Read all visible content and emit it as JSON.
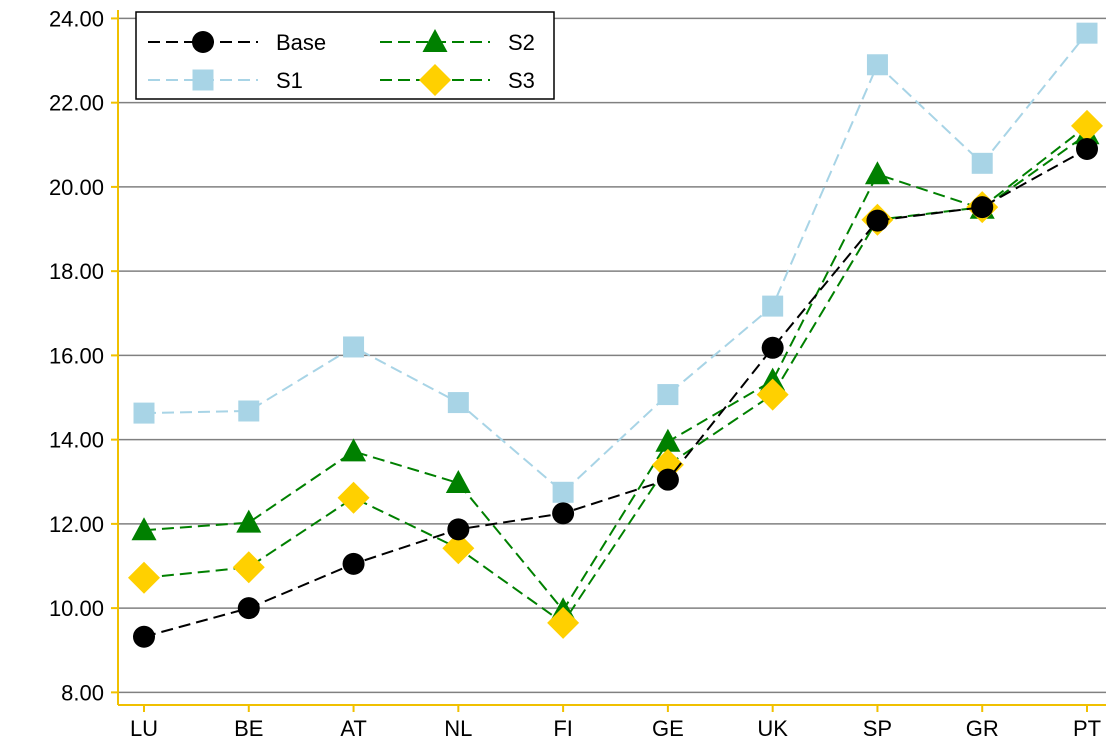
{
  "chart_data": {
    "type": "line",
    "categories": [
      "LU",
      "BE",
      "AT",
      "NL",
      "FI",
      "GE",
      "UK",
      "SP",
      "GR",
      "PT"
    ],
    "y_ticks": [
      "8.00",
      "10.00",
      "12.00",
      "14.00",
      "16.00",
      "18.00",
      "20.00",
      "22.00",
      "24.00"
    ],
    "ylim": [
      7.7,
      24.2
    ],
    "grid": true,
    "legend_position": "top-left",
    "series": [
      {
        "name": "Base",
        "marker": "circle",
        "marker_color": "#000000",
        "line_color": "#000000",
        "values": [
          9.32,
          10.0,
          11.05,
          11.87,
          12.25,
          13.05,
          16.18,
          19.2,
          19.52,
          20.9
        ]
      },
      {
        "name": "S1",
        "marker": "square",
        "marker_color": "#a8d4e6",
        "line_color": "#a8d4e6",
        "values": [
          14.63,
          14.68,
          16.2,
          14.88,
          12.75,
          15.07,
          17.17,
          22.9,
          20.56,
          23.65
        ]
      },
      {
        "name": "S2",
        "marker": "triangle",
        "marker_color": "#008000",
        "line_color": "#008000",
        "values": [
          11.85,
          12.03,
          13.72,
          12.97,
          9.95,
          13.95,
          15.4,
          20.3,
          19.48,
          21.25
        ]
      },
      {
        "name": "S3",
        "marker": "diamond",
        "marker_color": "#ffd000",
        "line_color": "#008000",
        "values": [
          10.72,
          10.97,
          12.62,
          11.42,
          9.65,
          13.4,
          15.07,
          19.22,
          19.52,
          21.45
        ]
      }
    ]
  }
}
